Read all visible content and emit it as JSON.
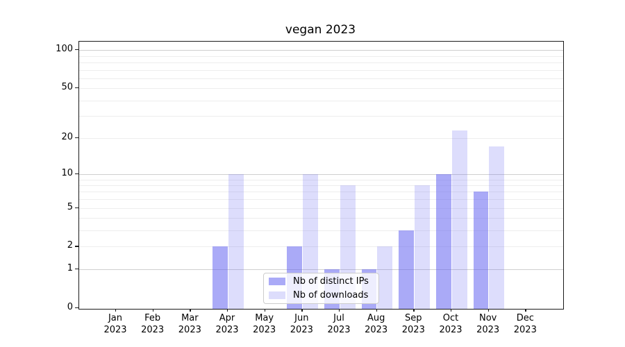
{
  "chart_data": {
    "type": "bar",
    "title": "vegan 2023",
    "categories": [
      "Jan 2023",
      "Feb 2023",
      "Mar 2023",
      "Apr 2023",
      "May 2023",
      "Jun 2023",
      "Jul 2023",
      "Aug 2023",
      "Sep 2023",
      "Oct 2023",
      "Nov 2023",
      "Dec 2023"
    ],
    "series": [
      {
        "name": "Nb of distinct IPs",
        "values": [
          0,
          0,
          0,
          2,
          0,
          2,
          1,
          1,
          3,
          10,
          7,
          0
        ],
        "color": "rgba(100,100,240,0.55)"
      },
      {
        "name": "Nb of downloads",
        "values": [
          0,
          0,
          0,
          10,
          0,
          10,
          8,
          2,
          8,
          23,
          17,
          0
        ],
        "color": "rgba(100,100,240,0.22)"
      }
    ],
    "xlabel": "",
    "ylabel": "",
    "yscale": "log1p",
    "ylim": [
      0,
      117
    ],
    "yticks": [
      0,
      1,
      2,
      5,
      10,
      20,
      50,
      100
    ],
    "major_gridlines": [
      1,
      10,
      100
    ],
    "minor_gridlines": [
      2,
      3,
      4,
      5,
      6,
      7,
      8,
      9,
      20,
      30,
      40,
      50,
      60,
      70,
      80,
      90
    ],
    "grid": "horizontal",
    "legend": {
      "position": "lower center",
      "entries": [
        "Nb of distinct IPs",
        "Nb of downloads"
      ]
    }
  }
}
